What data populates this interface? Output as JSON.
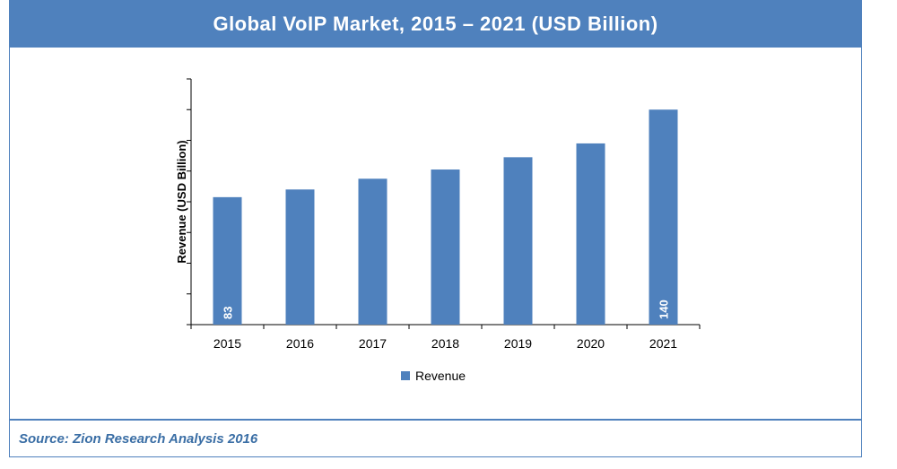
{
  "chart_data": {
    "type": "bar",
    "title": "Global VoIP Market, 2015 – 2021 (USD Billion)",
    "categories": [
      "2015",
      "2016",
      "2017",
      "2018",
      "2019",
      "2020",
      "2021"
    ],
    "series": [
      {
        "name": "Revenue",
        "values": [
          83,
          88,
          95,
          101,
          109,
          118,
          140
        ]
      }
    ],
    "data_labels": [
      "83",
      "",
      "",
      "",
      "",
      "",
      "140"
    ],
    "xlabel": "",
    "ylabel": "Revenue (USD Billion)",
    "ylim": [
      0,
      160
    ],
    "ytick_count": 8,
    "legend_position": "bottom",
    "bar_color": "#4f81bd"
  },
  "source": "Source: Zion Research Analysis 2016"
}
